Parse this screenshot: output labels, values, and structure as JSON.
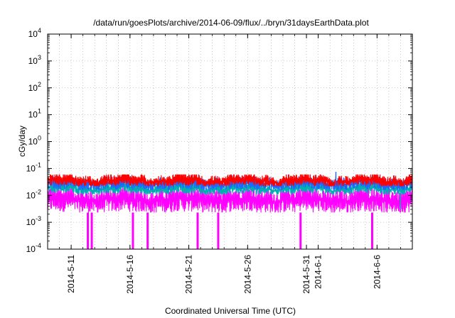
{
  "chart_data": {
    "type": "line",
    "title": "/data/run/goesPlots/archive/2014-06-09/flux/../bryn/31daysEarthData.plot",
    "xlabel": "Coordinated Universal Time (UTC)",
    "ylabel": "cGy/day",
    "yscale": "log",
    "ylim": [
      0.0001,
      10000
    ],
    "y_ticks": [
      {
        "value": 0.0001,
        "base": "10",
        "exp": "-4"
      },
      {
        "value": 0.001,
        "base": "10",
        "exp": "-3"
      },
      {
        "value": 0.01,
        "base": "10",
        "exp": "-2"
      },
      {
        "value": 0.1,
        "base": "10",
        "exp": "-1"
      },
      {
        "value": 1,
        "base": "10",
        "exp": "0"
      },
      {
        "value": 10,
        "base": "10",
        "exp": "1"
      },
      {
        "value": 100,
        "base": "10",
        "exp": "2"
      },
      {
        "value": 1000,
        "base": "10",
        "exp": "3"
      },
      {
        "value": 10000,
        "base": "10",
        "exp": "4"
      }
    ],
    "xlim": [
      "2014-05-09",
      "2014-06-09"
    ],
    "x_ticks": [
      {
        "date": "2014-05-11",
        "label": "2014-5-11"
      },
      {
        "date": "2014-05-16",
        "label": "2014-5-16"
      },
      {
        "date": "2014-05-21",
        "label": "2014-5-21"
      },
      {
        "date": "2014-05-26",
        "label": "2014-5-26"
      },
      {
        "date": "2014-05-31",
        "label": "2014-5-31"
      },
      {
        "date": "2014-06-01",
        "label": "2014-6-1"
      },
      {
        "date": "2014-06-06",
        "label": "2014-6-6"
      }
    ],
    "x_grid_dates": [
      "2014-05-10",
      "2014-05-11",
      "2014-05-12",
      "2014-05-13",
      "2014-05-14",
      "2014-05-15",
      "2014-05-16",
      "2014-05-17",
      "2014-05-18",
      "2014-05-19",
      "2014-05-20",
      "2014-05-21",
      "2014-05-22",
      "2014-05-23",
      "2014-05-24",
      "2014-05-25",
      "2014-05-26",
      "2014-05-27",
      "2014-05-28",
      "2014-05-29",
      "2014-05-30",
      "2014-05-31",
      "2014-06-01",
      "2014-06-02",
      "2014-06-03",
      "2014-06-04",
      "2014-06-05",
      "2014-06-06",
      "2014-06-07",
      "2014-06-08"
    ],
    "grid": true,
    "series": [
      {
        "color": "#ff0000",
        "typical_value": 0.035,
        "band": [
          0.022,
          0.06
        ]
      },
      {
        "color": "#1e64ff",
        "typical_value": 0.028,
        "band": [
          0.016,
          0.05
        ]
      },
      {
        "color": "#00b0b0",
        "typical_value": 0.018,
        "band": [
          0.011,
          0.028
        ]
      },
      {
        "color": "#ff00ff",
        "typical_value": 0.007,
        "band": [
          0.0023,
          0.02
        ]
      }
    ],
    "dropouts": [
      {
        "date": "2014-05-12 10:00",
        "value": 0.0001
      },
      {
        "date": "2014-05-12 18:00",
        "value": 0.0001
      },
      {
        "date": "2014-05-16 06:00",
        "value": 0.0001
      },
      {
        "date": "2014-05-17 12:00",
        "value": 0.0001
      },
      {
        "date": "2014-05-21 18:00",
        "value": 0.0001
      },
      {
        "date": "2014-05-23 12:00",
        "value": 0.0001
      },
      {
        "date": "2014-05-30 12:00",
        "value": 0.0001
      },
      {
        "date": "2014-06-05 14:00",
        "value": 0.0001
      }
    ],
    "spikes": [
      {
        "date": "2014-06-02 12:00",
        "value": 0.075,
        "color": "#1e64ff"
      },
      {
        "date": "2014-06-08 00:00",
        "value": 0.003,
        "color": "#00b0b0"
      }
    ]
  }
}
